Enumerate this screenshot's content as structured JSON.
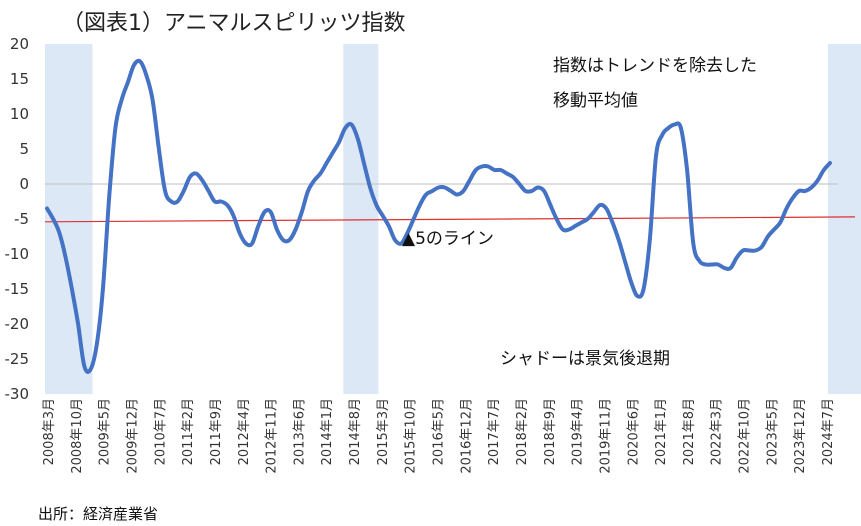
{
  "chart_data": {
    "type": "line",
    "title": "（図表1）アニマルスピリッツ指数",
    "source": "出所：経済産業省",
    "ylim": [
      -30,
      20
    ],
    "yticks": [
      "20",
      "15",
      "10",
      "5",
      "0",
      "-5",
      "-10",
      "-15",
      "-20",
      "-25",
      "-30"
    ],
    "x_labels": [
      "2008年3月",
      "2008年10月",
      "2009年5月",
      "2009年12月",
      "2010年7月",
      "2011年2月",
      "2011年9月",
      "2012年4月",
      "2012年11月",
      "2013年6月",
      "2014年1月",
      "2014年8月",
      "2015年3月",
      "2015年10月",
      "2016年5月",
      "2016年12月",
      "2017年7月",
      "2018年2月",
      "2018年9月",
      "2019年4月",
      "2019年11月",
      "2020年6月",
      "2021年1月",
      "2021年8月",
      "2022年3月",
      "2022年10月",
      "2023年5月",
      "2023年12月",
      "2024年7月"
    ],
    "series": [
      {
        "values": [
          -3.5,
          -5,
          -7,
          -10.5,
          -15,
          -20,
          -26,
          -26.5,
          -23,
          -15,
          -2,
          8,
          12,
          14.5,
          17,
          17.5,
          15.5,
          12,
          5,
          -1,
          -2.5,
          -2.5,
          -1,
          1,
          1.5,
          0.5,
          -1,
          -2.5,
          -2.5,
          -3,
          -4.5,
          -7,
          -8.5,
          -8.5,
          -6,
          -4,
          -4,
          -6.5,
          -8,
          -8,
          -6.5,
          -4,
          -1,
          0.5,
          1.5,
          3,
          4.5,
          6,
          8,
          8.5,
          6.5,
          3,
          -0.5,
          -3,
          -4.5,
          -6,
          -8,
          -8.5,
          -7,
          -5,
          -3,
          -1.5,
          -1,
          -0.5,
          -0.5,
          -1,
          -1.5,
          -1,
          0.5,
          2,
          2.5,
          2.5,
          2,
          2,
          1.5,
          1,
          0,
          -1,
          -1,
          -0.5,
          -1,
          -3,
          -5,
          -6.5,
          -6.5,
          -6,
          -5.5,
          -5,
          -4,
          -3,
          -3.5,
          -5.5,
          -8,
          -11,
          -14,
          -16,
          -15,
          -8,
          4,
          7,
          8,
          8.5,
          8,
          2,
          -8.5,
          -11,
          -11.5,
          -11.5,
          -11.5,
          -12,
          -12,
          -10.5,
          -9.5,
          -9.5,
          -9.5,
          -9,
          -7.5,
          -6.5,
          -5.5,
          -3.5,
          -2,
          -1,
          -1,
          -0.5,
          0.5,
          2,
          3
        ]
      },
      {
        "name": "trend",
        "values": [
          -5.4,
          -4.7
        ]
      }
    ],
    "shading_ranges": [
      [
        0,
        7
      ],
      [
        48,
        53
      ],
      [
        126,
        137
      ]
    ],
    "annotations": {
      "trend_note_line1": "指数はトレンドを除去した",
      "trend_note_line2": "移動平均値",
      "baseline_label": "▲5のライン",
      "shade_label": "シャドーは景気後退期"
    },
    "grid": false,
    "colors": {
      "series": "#4472c4",
      "trend": "#e03030",
      "shade": "#dce8f6",
      "axis": "#bfbfbf"
    }
  }
}
